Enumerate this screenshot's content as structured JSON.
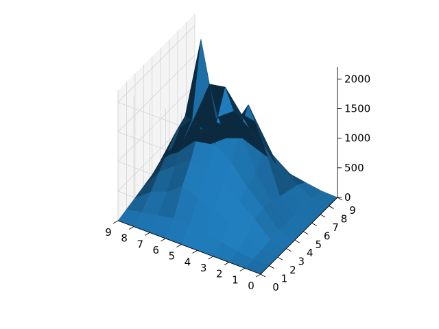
{
  "chart_data": {
    "type": "surface3d",
    "title": "",
    "xlabel": "",
    "ylabel": "",
    "zlabel": "",
    "x": [
      0,
      1,
      2,
      3,
      4,
      5,
      6,
      7,
      8,
      9
    ],
    "y": [
      0,
      1,
      2,
      3,
      4,
      5,
      6,
      7,
      8,
      9
    ],
    "z": [
      [
        0,
        0,
        0,
        0,
        0,
        0,
        0,
        0,
        0,
        0
      ],
      [
        0,
        10,
        30,
        50,
        60,
        50,
        40,
        30,
        20,
        10
      ],
      [
        0,
        50,
        150,
        300,
        350,
        300,
        250,
        200,
        150,
        50
      ],
      [
        0,
        100,
        300,
        500,
        600,
        700,
        1000,
        700,
        400,
        100
      ],
      [
        0,
        150,
        400,
        650,
        900,
        1300,
        1600,
        1150,
        600,
        200
      ],
      [
        0,
        200,
        500,
        800,
        1100,
        1500,
        1100,
        1200,
        800,
        300
      ],
      [
        0,
        200,
        600,
        900,
        1300,
        1100,
        1100,
        1550,
        1000,
        400
      ],
      [
        0,
        150,
        400,
        700,
        1000,
        1200,
        2400,
        1500,
        800,
        300
      ],
      [
        0,
        100,
        300,
        500,
        700,
        900,
        1000,
        800,
        500,
        100
      ],
      [
        0,
        50,
        100,
        150,
        200,
        300,
        250,
        150,
        100,
        50
      ]
    ],
    "xlim": [
      0,
      9
    ],
    "ylim": [
      0,
      9
    ],
    "zlim": [
      0,
      2200
    ],
    "x_ticks": [
      "0",
      "1",
      "2",
      "3",
      "4",
      "5",
      "6",
      "7",
      "8",
      "9"
    ],
    "y_ticks": [
      "0",
      "1",
      "2",
      "3",
      "4",
      "5",
      "6",
      "7",
      "8",
      "9"
    ],
    "z_ticks": [
      "0",
      "500",
      "1000",
      "1500",
      "2000"
    ],
    "z_tick_values": [
      0,
      500,
      1000,
      1500,
      2000
    ],
    "grid": true,
    "legend": "none",
    "colors": {
      "surface": "#1f77b4",
      "pane": "#f2f2f2",
      "grid": "#d4d4d4",
      "axis": "#000000"
    }
  }
}
